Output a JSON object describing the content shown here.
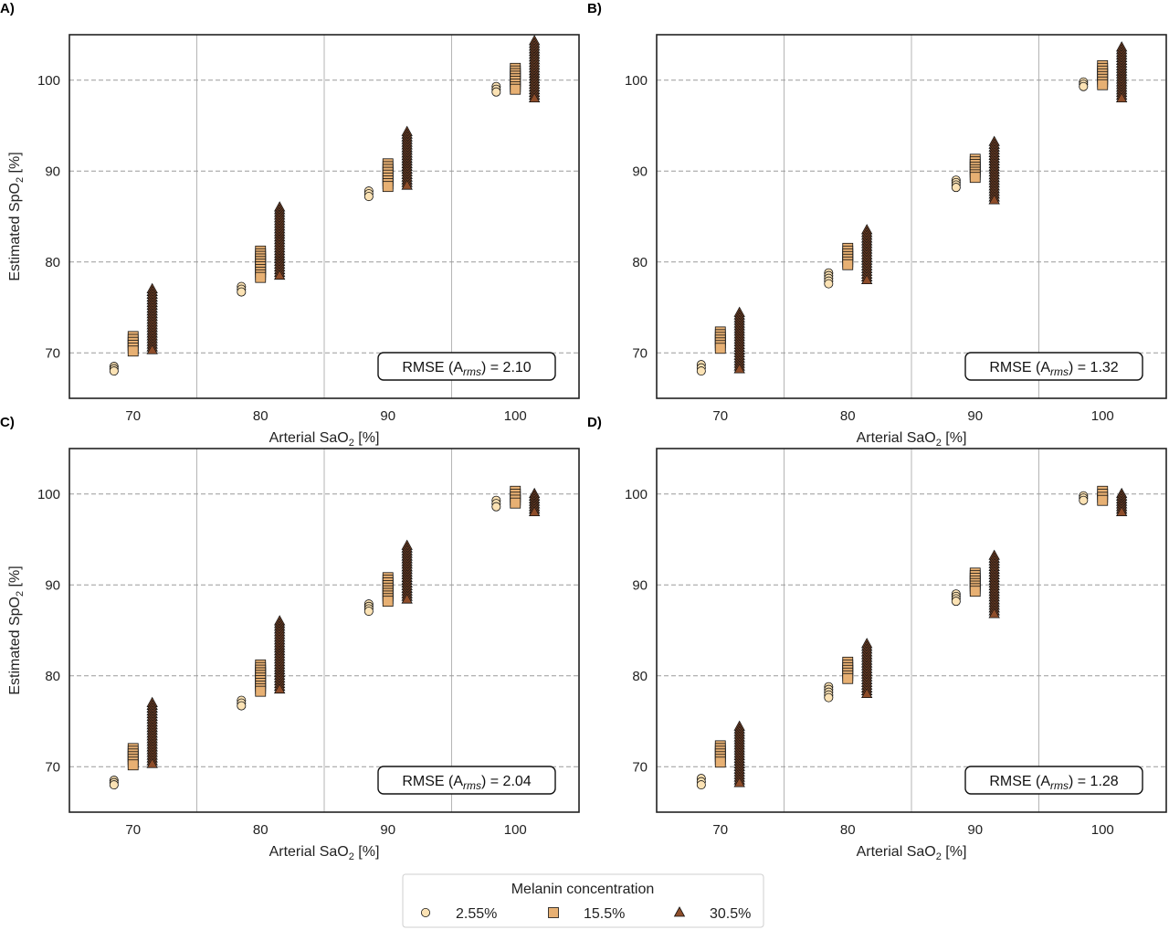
{
  "colors": {
    "low_melanin": "#fbe2b4",
    "mid_melanin": "#e7b073",
    "high_melanin": "#8e4d2a",
    "frame": "#222222",
    "vgrid": "#b5b5b5",
    "hgrid": "#9a9a9a"
  },
  "legend": {
    "title": "Melanin concentration",
    "items": [
      {
        "label": "2.55%",
        "marker": "circle",
        "color": "#fbe2b4"
      },
      {
        "label": "15.5%",
        "marker": "square",
        "color": "#e7b073"
      },
      {
        "label": "30.5%",
        "marker": "triangle",
        "color": "#8e4d2a"
      }
    ]
  },
  "chart_data": [
    {
      "panel": "A)",
      "type": "scatter",
      "xlabel": "Arterial SaO",
      "xlabel_sub": "2",
      "xlabel_suffix": " [%]",
      "ylabel": "Estimated SpO",
      "ylabel_sub": "2",
      "ylabel_suffix": " [%]",
      "xlim": [
        65,
        105
      ],
      "ylim": [
        65,
        105
      ],
      "xticks": [
        70,
        80,
        90,
        100
      ],
      "yticks": [
        70,
        80,
        90,
        100
      ],
      "xgrid": [
        75,
        85,
        95
      ],
      "annotation": {
        "prefix": "RMSE (A",
        "sub": "rms",
        "suffix": ") = 2.10"
      },
      "series": [
        {
          "name": "2.55%",
          "marker": "circle",
          "points": [
            {
              "x": 68.5,
              "ymin": 68.0,
              "ymax": 68.5
            },
            {
              "x": 78.5,
              "ymin": 76.7,
              "ymax": 77.3
            },
            {
              "x": 88.5,
              "ymin": 87.2,
              "ymax": 87.8
            },
            {
              "x": 98.5,
              "ymin": 98.7,
              "ymax": 99.3
            }
          ]
        },
        {
          "name": "15.5%",
          "marker": "square",
          "points": [
            {
              "x": 70.0,
              "ymin": 70.2,
              "ymax": 71.8
            },
            {
              "x": 80.0,
              "ymin": 78.3,
              "ymax": 81.2
            },
            {
              "x": 90.0,
              "ymin": 88.3,
              "ymax": 90.8
            },
            {
              "x": 100.0,
              "ymin": 99.0,
              "ymax": 101.3
            }
          ]
        },
        {
          "name": "30.5%",
          "marker": "triangle",
          "points": [
            {
              "x": 71.5,
              "ymin": 70.3,
              "ymax": 77.0
            },
            {
              "x": 81.5,
              "ymin": 78.5,
              "ymax": 86.0
            },
            {
              "x": 91.5,
              "ymin": 88.4,
              "ymax": 94.3
            },
            {
              "x": 101.5,
              "ymin": 98.0,
              "ymax": 104.3
            }
          ]
        }
      ]
    },
    {
      "panel": "B)",
      "type": "scatter",
      "xlabel": "Arterial SaO",
      "xlabel_sub": "2",
      "xlabel_suffix": " [%]",
      "ylabel": "",
      "ylabel_sub": "",
      "ylabel_suffix": "",
      "xlim": [
        65,
        105
      ],
      "ylim": [
        65,
        105
      ],
      "xticks": [
        70,
        80,
        90,
        100
      ],
      "yticks": [
        70,
        80,
        90,
        100
      ],
      "xgrid": [
        75,
        85,
        95
      ],
      "annotation": {
        "prefix": "RMSE (A",
        "sub": "rms",
        "suffix": ") = 1.32"
      },
      "series": [
        {
          "name": "2.55%",
          "marker": "circle",
          "points": [
            {
              "x": 68.5,
              "ymin": 68.0,
              "ymax": 68.7
            },
            {
              "x": 78.5,
              "ymin": 77.6,
              "ymax": 78.8
            },
            {
              "x": 88.5,
              "ymin": 88.2,
              "ymax": 89.0
            },
            {
              "x": 98.5,
              "ymin": 99.3,
              "ymax": 99.8
            }
          ]
        },
        {
          "name": "15.5%",
          "marker": "square",
          "points": [
            {
              "x": 70.0,
              "ymin": 70.5,
              "ymax": 72.3
            },
            {
              "x": 80.0,
              "ymin": 79.7,
              "ymax": 81.5
            },
            {
              "x": 90.0,
              "ymin": 89.3,
              "ymax": 91.3
            },
            {
              "x": 100.0,
              "ymin": 99.5,
              "ymax": 101.6
            }
          ]
        },
        {
          "name": "30.5%",
          "marker": "triangle",
          "points": [
            {
              "x": 71.5,
              "ymin": 68.2,
              "ymax": 74.4
            },
            {
              "x": 81.5,
              "ymin": 78.0,
              "ymax": 83.5
            },
            {
              "x": 91.5,
              "ymin": 86.8,
              "ymax": 93.2
            },
            {
              "x": 101.5,
              "ymin": 98.0,
              "ymax": 103.6
            }
          ]
        }
      ]
    },
    {
      "panel": "C)",
      "type": "scatter",
      "xlabel": "Arterial SaO",
      "xlabel_sub": "2",
      "xlabel_suffix": " [%]",
      "ylabel": "Estimated SpO",
      "ylabel_sub": "2",
      "ylabel_suffix": " [%]",
      "xlim": [
        65,
        105
      ],
      "ylim": [
        65,
        105
      ],
      "xticks": [
        70,
        80,
        90,
        100
      ],
      "yticks": [
        70,
        80,
        90,
        100
      ],
      "xgrid": [
        75,
        85,
        95
      ],
      "annotation": {
        "prefix": "RMSE (A",
        "sub": "rms",
        "suffix": ") = 2.04"
      },
      "series": [
        {
          "name": "2.55%",
          "marker": "circle",
          "points": [
            {
              "x": 68.5,
              "ymin": 68.0,
              "ymax": 68.5
            },
            {
              "x": 78.5,
              "ymin": 76.7,
              "ymax": 77.3
            },
            {
              "x": 88.5,
              "ymin": 87.1,
              "ymax": 87.9
            },
            {
              "x": 98.5,
              "ymin": 98.6,
              "ymax": 99.3
            }
          ]
        },
        {
          "name": "15.5%",
          "marker": "square",
          "points": [
            {
              "x": 70.0,
              "ymin": 70.2,
              "ymax": 72.0
            },
            {
              "x": 80.0,
              "ymin": 78.3,
              "ymax": 81.2
            },
            {
              "x": 90.0,
              "ymin": 88.2,
              "ymax": 90.8
            },
            {
              "x": 100.0,
              "ymin": 99.0,
              "ymax": 100.3
            }
          ]
        },
        {
          "name": "30.5%",
          "marker": "triangle",
          "points": [
            {
              "x": 71.5,
              "ymin": 70.3,
              "ymax": 77.0
            },
            {
              "x": 81.5,
              "ymin": 78.5,
              "ymax": 86.0
            },
            {
              "x": 91.5,
              "ymin": 88.4,
              "ymax": 94.3
            },
            {
              "x": 101.5,
              "ymin": 98.0,
              "ymax": 100.0
            }
          ]
        }
      ]
    },
    {
      "panel": "D)",
      "type": "scatter",
      "xlabel": "Arterial SaO",
      "xlabel_sub": "2",
      "xlabel_suffix": " [%]",
      "ylabel": "",
      "ylabel_sub": "",
      "ylabel_suffix": "",
      "xlim": [
        65,
        105
      ],
      "ylim": [
        65,
        105
      ],
      "xticks": [
        70,
        80,
        90,
        100
      ],
      "yticks": [
        70,
        80,
        90,
        100
      ],
      "xgrid": [
        75,
        85,
        95
      ],
      "annotation": {
        "prefix": "RMSE (A",
        "sub": "rms",
        "suffix": ") = 1.28"
      },
      "series": [
        {
          "name": "2.55%",
          "marker": "circle",
          "points": [
            {
              "x": 68.5,
              "ymin": 68.0,
              "ymax": 68.7
            },
            {
              "x": 78.5,
              "ymin": 77.6,
              "ymax": 78.8
            },
            {
              "x": 88.5,
              "ymin": 88.2,
              "ymax": 89.0
            },
            {
              "x": 98.5,
              "ymin": 99.3,
              "ymax": 99.8
            }
          ]
        },
        {
          "name": "15.5%",
          "marker": "square",
          "points": [
            {
              "x": 70.0,
              "ymin": 70.5,
              "ymax": 72.3
            },
            {
              "x": 80.0,
              "ymin": 79.7,
              "ymax": 81.5
            },
            {
              "x": 90.0,
              "ymin": 89.3,
              "ymax": 91.3
            },
            {
              "x": 100.0,
              "ymin": 99.3,
              "ymax": 100.3
            }
          ]
        },
        {
          "name": "30.5%",
          "marker": "triangle",
          "points": [
            {
              "x": 71.5,
              "ymin": 68.2,
              "ymax": 74.4
            },
            {
              "x": 81.5,
              "ymin": 78.0,
              "ymax": 83.5
            },
            {
              "x": 91.5,
              "ymin": 86.8,
              "ymax": 93.2
            },
            {
              "x": 101.5,
              "ymin": 98.0,
              "ymax": 100.0
            }
          ]
        }
      ]
    }
  ]
}
